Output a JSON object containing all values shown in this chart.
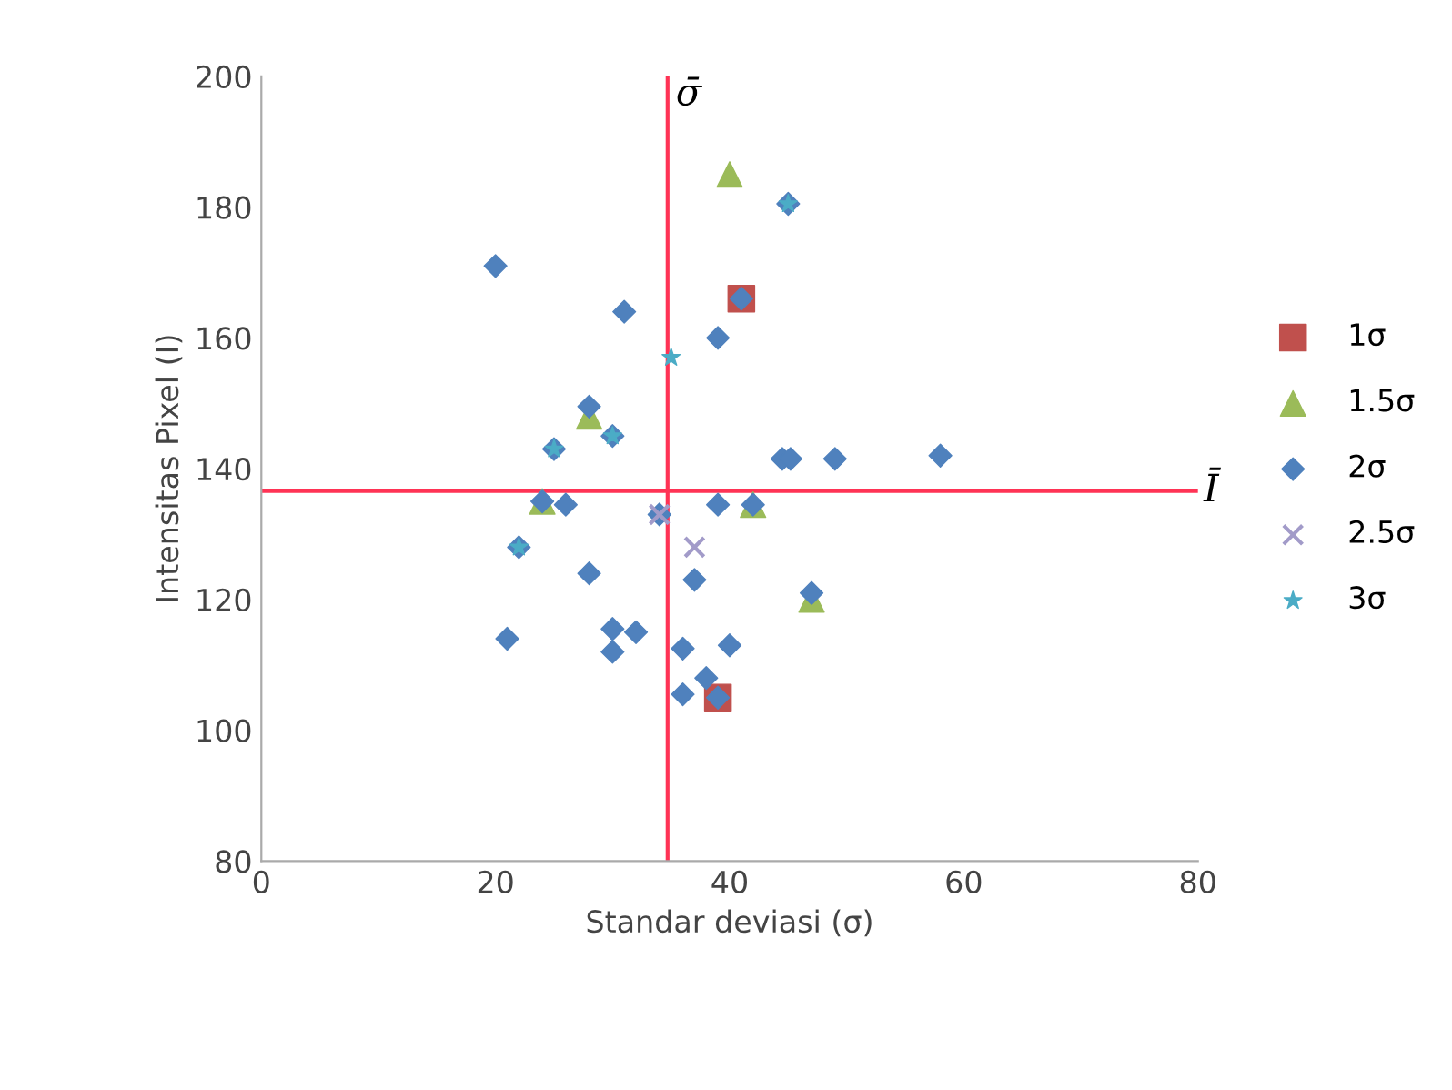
{
  "chart_data": {
    "type": "scatter",
    "xlabel": "Standar deviasi (σ)",
    "ylabel": "Intensitas Pixel (I)",
    "xlim": [
      0,
      80
    ],
    "xticks": [
      0,
      20,
      40,
      60,
      80
    ],
    "ylim": [
      80,
      200
    ],
    "yticks": [
      80,
      100,
      120,
      140,
      160,
      180,
      200
    ],
    "grid": false,
    "legend": "right",
    "series": [
      {
        "name": "1σ",
        "color": "#c0504d",
        "marker": "square",
        "x": [
          41,
          39
        ],
        "values": [
          166,
          105
        ]
      },
      {
        "name": "1.5σ",
        "color": "#9bbb59",
        "marker": "triangle",
        "x": [
          40,
          28,
          24,
          42,
          47
        ],
        "values": [
          185,
          148,
          135,
          134.5,
          120
        ]
      },
      {
        "name": "2σ",
        "color": "#4f81bd",
        "marker": "diamond",
        "x": [
          20,
          31,
          39,
          28,
          30,
          25,
          24,
          26,
          34,
          39,
          42,
          44.5,
          45.2,
          49,
          58,
          47,
          37,
          40,
          38,
          22,
          28,
          21,
          30,
          32,
          30,
          36,
          36,
          39,
          45,
          41
        ],
        "values": [
          171,
          164,
          160,
          149.5,
          145,
          143,
          135,
          134.5,
          133,
          134.5,
          134.5,
          141.5,
          141.5,
          141.5,
          142,
          121,
          123,
          113,
          108,
          128,
          124,
          114,
          115.5,
          115,
          112,
          112.5,
          105.5,
          105,
          180.5,
          166
        ]
      },
      {
        "name": "2.5σ",
        "color": "#a29bc9",
        "marker": "cross",
        "x": [
          37,
          34
        ],
        "values": [
          128,
          133
        ]
      },
      {
        "name": "3σ",
        "color": "#4bacc6",
        "marker": "star",
        "x": [
          45,
          35,
          30,
          25,
          22
        ],
        "values": [
          180.5,
          157,
          145,
          143,
          128
        ]
      }
    ],
    "ref_lines": [
      {
        "axis": "x",
        "value": 34.7,
        "label": "σ̄",
        "color": "#ff3355"
      },
      {
        "axis": "y",
        "value": 136.6,
        "label": "Ī",
        "color": "#ff3355"
      }
    ]
  }
}
